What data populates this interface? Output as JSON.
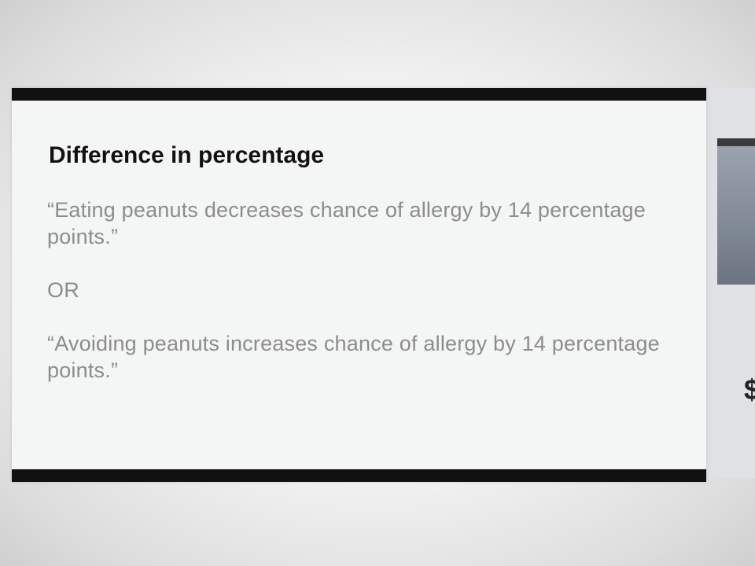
{
  "slide": {
    "title": "Difference in percentage",
    "paragraphs": [
      "“Eating peanuts decreases chance of allergy by 14 percentage points.”",
      "OR",
      "“Avoiding peanuts increases chance of allergy by 14 percentage points.”"
    ]
  },
  "colors": {
    "slide_background": "#f3f6f4",
    "bar": "#111111",
    "title": "#111111",
    "body_text": "#8c8c8c"
  }
}
